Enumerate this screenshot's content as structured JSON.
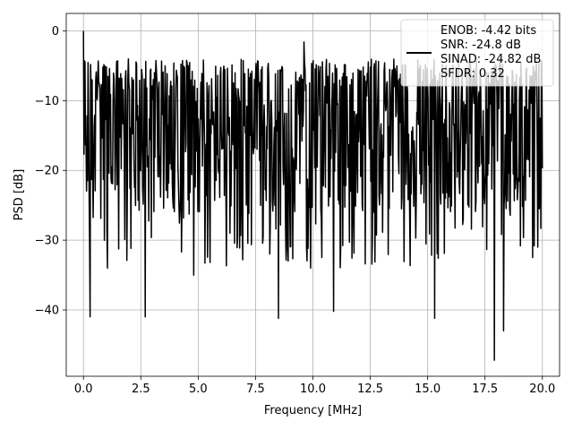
{
  "chart_data": {
    "type": "line",
    "title": "",
    "xlabel": "Frequency [MHz]",
    "ylabel": "PSD [dB]",
    "xlim": [
      -0.75,
      20.75
    ],
    "ylim": [
      -49.5,
      2.5
    ],
    "xticks": [
      0.0,
      2.5,
      5.0,
      7.5,
      10.0,
      12.5,
      15.0,
      17.5,
      20.0
    ],
    "xtick_labels": [
      "0.0",
      "2.5",
      "5.0",
      "7.5",
      "10.0",
      "12.5",
      "15.0",
      "17.5",
      "20.0"
    ],
    "yticks": [
      0,
      -10,
      -20,
      -30,
      -40
    ],
    "ytick_labels": [
      "0",
      "−10",
      "−20",
      "−30",
      "−40"
    ],
    "grid": true,
    "legend": {
      "placement": "top-right",
      "lines": [
        "ENOB: -4.42 bits",
        "SNR: -24.8 dB",
        "SINAD: -24.82 dB",
        "SFDR: 0.32"
      ]
    },
    "series": [
      {
        "color": "#000000",
        "x_range": [
          0,
          20
        ],
        "noise_band_upper": -4,
        "noise_band_lower": -26,
        "peaks": [
          {
            "x": 0.0,
            "y": 0.0
          },
          {
            "x": 0.05,
            "y": -4.3
          },
          {
            "x": 0.3,
            "y": -41.0
          },
          {
            "x": 1.05,
            "y": -34.0
          },
          {
            "x": 2.7,
            "y": -41.0
          },
          {
            "x": 4.8,
            "y": -35.0
          },
          {
            "x": 8.5,
            "y": -41.2
          },
          {
            "x": 9.6,
            "y": -1.6
          },
          {
            "x": 10.9,
            "y": -40.2
          },
          {
            "x": 15.3,
            "y": -41.2
          },
          {
            "x": 15.8,
            "y": -5.0
          },
          {
            "x": 17.9,
            "y": -47.2
          },
          {
            "x": 18.3,
            "y": -43.0
          },
          {
            "x": 19.8,
            "y": -31.0
          }
        ]
      }
    ],
    "n_points": 900
  }
}
